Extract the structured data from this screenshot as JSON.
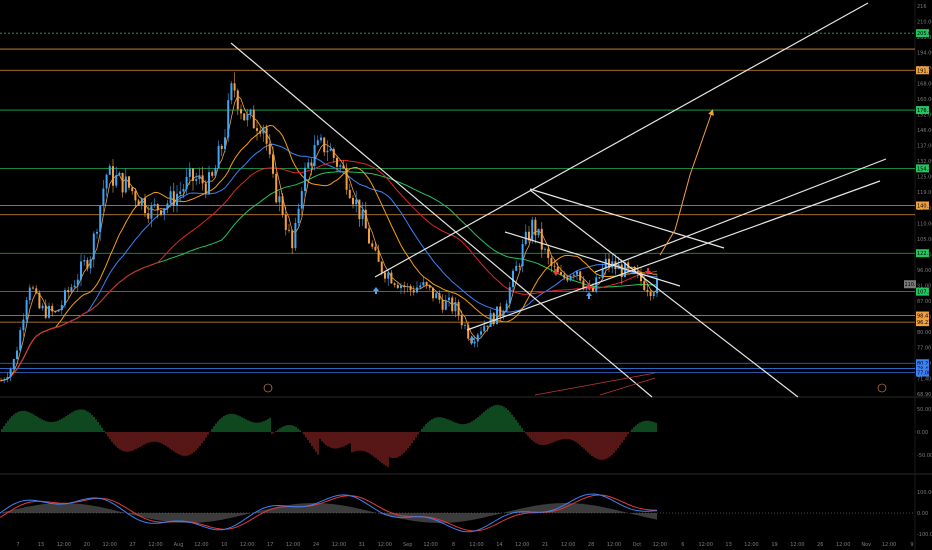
{
  "chart_data": {
    "type": "candlestick",
    "price_axis": {
      "range": [
        68.9,
        216
      ],
      "ticks": [
        "216",
        "210.00",
        "203.00",
        "194.00",
        "179.00",
        "168.00",
        "160.00",
        "152.00",
        "146.00",
        "137.00",
        "132.00",
        "125.00",
        "119.00",
        "114.00",
        "110.00",
        "105.00",
        "100.00",
        "96.00",
        "91.00",
        "87.00",
        "83.00",
        "80.00",
        "77.00",
        "74.00",
        "71.40",
        "68.90"
      ]
    },
    "time_axis_labels": [
      "7",
      "13",
      "12:00",
      "20",
      "12:00",
      "27",
      "12:00",
      "Aug",
      "12:00",
      "10",
      "12:00",
      "17",
      "12:00",
      "24",
      "12:00",
      "31",
      "12:00",
      "Sep",
      "12:00",
      "8",
      "12:00",
      "14",
      "12:00",
      "21",
      "12:00",
      "28",
      "12:00",
      "Oct",
      "12:00",
      "6",
      "12:00",
      "13",
      "12:00",
      "19",
      "12:00",
      "26",
      "12:00",
      "Nov",
      "12:00",
      "9"
    ],
    "horizontal_levels": [
      {
        "price": 205,
        "color": "#22c55e",
        "style": "dashed",
        "label": "205.00"
      },
      {
        "price": 199,
        "color": "#f0a040",
        "label": ""
      },
      {
        "price": 191,
        "color": "#f0a040",
        "label": "191.78"
      },
      {
        "price": 176,
        "color": "#22c55e",
        "label": "176.18"
      },
      {
        "price": 154,
        "color": "#22c55e",
        "label": "154.30"
      },
      {
        "price": 140,
        "color": "#f0a040",
        "label": "140.11"
      },
      {
        "price": 136.5,
        "color": "#f0a040",
        "label": ""
      },
      {
        "price": 122,
        "color": "#22c55e",
        "label": "122.15"
      },
      {
        "price": 107.5,
        "color": "#22c55e",
        "label": "107.27"
      },
      {
        "price": 98.5,
        "color": "#f0a040",
        "label": "98.47"
      },
      {
        "price": 96,
        "color": "#f0a040",
        "label": "96.21"
      },
      {
        "price": 80.5,
        "color": "#3b82f6",
        "label": "80.21"
      },
      {
        "price": 78.5,
        "color": "#3b82f6",
        "label": "78.41"
      },
      {
        "price": 77,
        "color": "#3b82f6",
        "label": "77.00"
      }
    ],
    "current_price_label": "110.32",
    "series": [
      {
        "name": "",
        "color": "#dc2626",
        "type": "moving-average"
      },
      {
        "name": "",
        "color": "#f59e0b",
        "type": "moving-average"
      },
      {
        "name": "",
        "color": "#3b82f6",
        "type": "moving-average"
      },
      {
        "name": "",
        "color": "#22c55e",
        "type": "moving-average"
      }
    ],
    "histogram_axis_ticks": [
      "50.00",
      "0.00",
      "-50.00"
    ],
    "oscillator_axis_ticks": [
      "100.00",
      "0.00",
      "-100.00"
    ],
    "annotations": [
      "trendlines",
      "channel",
      "wedge",
      "projection-arrow",
      "signal-arrows"
    ],
    "grid": false,
    "legend": "none"
  }
}
